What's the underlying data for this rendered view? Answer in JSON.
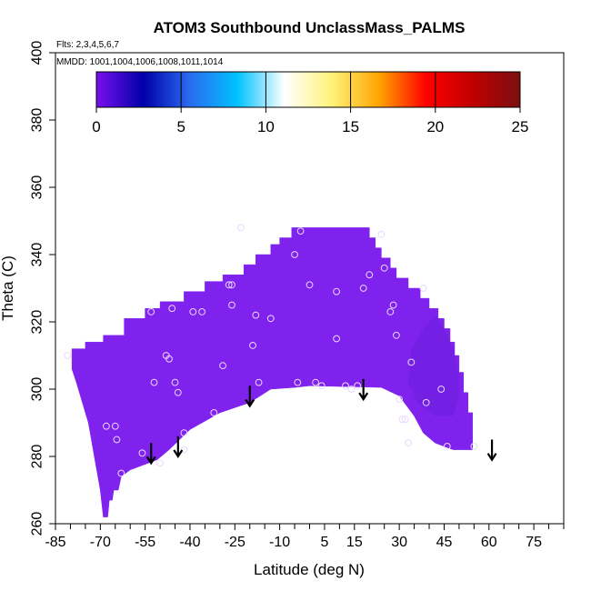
{
  "chart_data": {
    "type": "heatmap",
    "title": "ATOM3 Southbound UnclassMass_PALMS",
    "subtitle_flights": "Flts: 2,3,4,5,6,7",
    "subtitle_dates": "MMDD: 1001,1004,1006,1008,1011,1014",
    "xlabel": "Latitude (deg N)",
    "ylabel": "Theta (C)",
    "xlim": [
      -85,
      85
    ],
    "ylim": [
      260,
      400
    ],
    "x_ticks": [
      -85,
      -70,
      -55,
      -40,
      -25,
      -10,
      5,
      15,
      30,
      45,
      60,
      75
    ],
    "x_minor_ticks": [
      -80,
      -75,
      -65,
      -60,
      -50,
      -45,
      -35,
      -30,
      -20,
      -15,
      -5,
      0,
      10,
      20,
      25,
      35,
      40,
      50,
      55,
      65,
      70,
      80,
      85
    ],
    "y_ticks": [
      260,
      280,
      300,
      320,
      340,
      360,
      380,
      400
    ],
    "colorbar": {
      "min": 0,
      "max": 25,
      "ticks": [
        0,
        5,
        10,
        15,
        20,
        25
      ],
      "colors": [
        "#7a10ee",
        "#0000aa",
        "#2a6cf0",
        "#00c2ff",
        "#ffffff",
        "#fff27a",
        "#ffa500",
        "#ff0000",
        "#c00000",
        "#7a1010"
      ]
    },
    "field_value": 1.5,
    "field_color": "#8022ee",
    "field_color_dark": "#7020e0",
    "domain_boundary": [
      [
        -79.5,
        310
      ],
      [
        -79.5,
        312
      ],
      [
        -75,
        312
      ],
      [
        -75,
        314
      ],
      [
        -69,
        314
      ],
      [
        -69,
        316
      ],
      [
        -62,
        316
      ],
      [
        -62,
        321
      ],
      [
        -55,
        321
      ],
      [
        -55,
        324
      ],
      [
        -50,
        324
      ],
      [
        -50,
        326
      ],
      [
        -42,
        326
      ],
      [
        -42,
        329
      ],
      [
        -35,
        329
      ],
      [
        -35,
        332
      ],
      [
        -29,
        332
      ],
      [
        -29,
        334
      ],
      [
        -22,
        334
      ],
      [
        -22,
        337
      ],
      [
        -18,
        337
      ],
      [
        -18,
        340
      ],
      [
        -13,
        340
      ],
      [
        -13,
        343
      ],
      [
        -10,
        343
      ],
      [
        -10,
        345
      ],
      [
        -6,
        345
      ],
      [
        -6,
        348
      ],
      [
        20,
        348
      ],
      [
        20,
        345
      ],
      [
        22,
        345
      ],
      [
        22,
        342
      ],
      [
        24,
        342
      ],
      [
        24,
        339
      ],
      [
        27,
        339
      ],
      [
        27,
        336
      ],
      [
        29,
        336
      ],
      [
        29,
        333
      ],
      [
        33,
        333
      ],
      [
        33,
        330
      ],
      [
        37,
        330
      ],
      [
        37,
        327
      ],
      [
        40,
        327
      ],
      [
        40,
        324
      ],
      [
        43,
        324
      ],
      [
        43,
        321
      ],
      [
        45,
        321
      ],
      [
        45,
        318
      ],
      [
        47,
        318
      ],
      [
        47,
        314
      ],
      [
        48.5,
        314
      ],
      [
        48.5,
        310
      ],
      [
        50,
        310
      ],
      [
        50,
        305
      ],
      [
        51.5,
        305
      ],
      [
        51.5,
        299
      ],
      [
        53,
        299
      ],
      [
        53,
        293
      ],
      [
        54.5,
        293
      ],
      [
        54.5,
        282
      ],
      [
        48,
        282
      ],
      [
        42,
        284
      ],
      [
        38,
        287
      ],
      [
        35,
        292
      ],
      [
        30,
        298
      ],
      [
        24,
        300.5
      ],
      [
        0,
        301
      ],
      [
        -5,
        300.5
      ],
      [
        -13,
        300
      ],
      [
        -20,
        296
      ],
      [
        -30,
        293
      ],
      [
        -40,
        288
      ],
      [
        -47,
        282
      ],
      [
        -51,
        279
      ],
      [
        -57,
        277
      ],
      [
        -60,
        276
      ],
      [
        -63,
        274
      ],
      [
        -64,
        270
      ],
      [
        -65.5,
        270
      ],
      [
        -66,
        267
      ],
      [
        -67,
        267
      ],
      [
        -67.5,
        262
      ],
      [
        -69,
        262
      ],
      [
        -70,
        270
      ],
      [
        -71,
        275
      ],
      [
        -72,
        280
      ],
      [
        -73,
        285
      ],
      [
        -74,
        290
      ],
      [
        -76,
        296
      ],
      [
        -78,
        302
      ],
      [
        -79.5,
        306
      ]
    ],
    "dark_patch": [
      [
        34,
        312
      ],
      [
        38,
        318
      ],
      [
        42,
        322
      ],
      [
        45,
        318
      ],
      [
        48,
        312
      ],
      [
        50,
        305
      ],
      [
        50,
        298
      ],
      [
        48,
        292
      ],
      [
        42,
        292
      ],
      [
        36,
        296
      ],
      [
        33,
        302
      ]
    ],
    "sample_points": {
      "x": [
        -81,
        -68,
        -65,
        -64.5,
        -63,
        -56,
        -53,
        -52,
        -50,
        -48,
        -47,
        -46,
        -45,
        -44,
        -42,
        -42,
        -39,
        -36,
        -32,
        -29,
        -27,
        -26,
        -26,
        -23,
        -19,
        -18,
        -17,
        -13,
        -5,
        -4,
        -3,
        0,
        2,
        4,
        9,
        9,
        12,
        14,
        16,
        18,
        20,
        24,
        25,
        27,
        28,
        29,
        30,
        31,
        32,
        33,
        34,
        38,
        39,
        44,
        46,
        55
      ],
      "y": [
        310,
        289,
        289,
        285,
        275,
        281,
        323,
        302,
        278,
        310,
        309,
        324,
        302,
        299,
        282,
        287,
        323,
        323,
        293,
        307,
        331,
        325,
        331,
        348,
        313,
        322,
        302,
        321,
        340,
        302,
        347,
        331,
        302,
        301,
        329,
        315,
        301,
        300,
        301,
        330,
        334,
        346,
        336,
        323,
        325,
        316,
        297,
        291,
        291,
        284,
        308,
        330,
        296,
        300,
        283,
        283
      ]
    },
    "arrows_x": [
      -53,
      -44,
      -20,
      18,
      61
    ],
    "arrows_y_start": [
      284,
      286,
      301,
      303,
      285
    ],
    "arrows_y_end": [
      278,
      280,
      295,
      297,
      279
    ]
  }
}
